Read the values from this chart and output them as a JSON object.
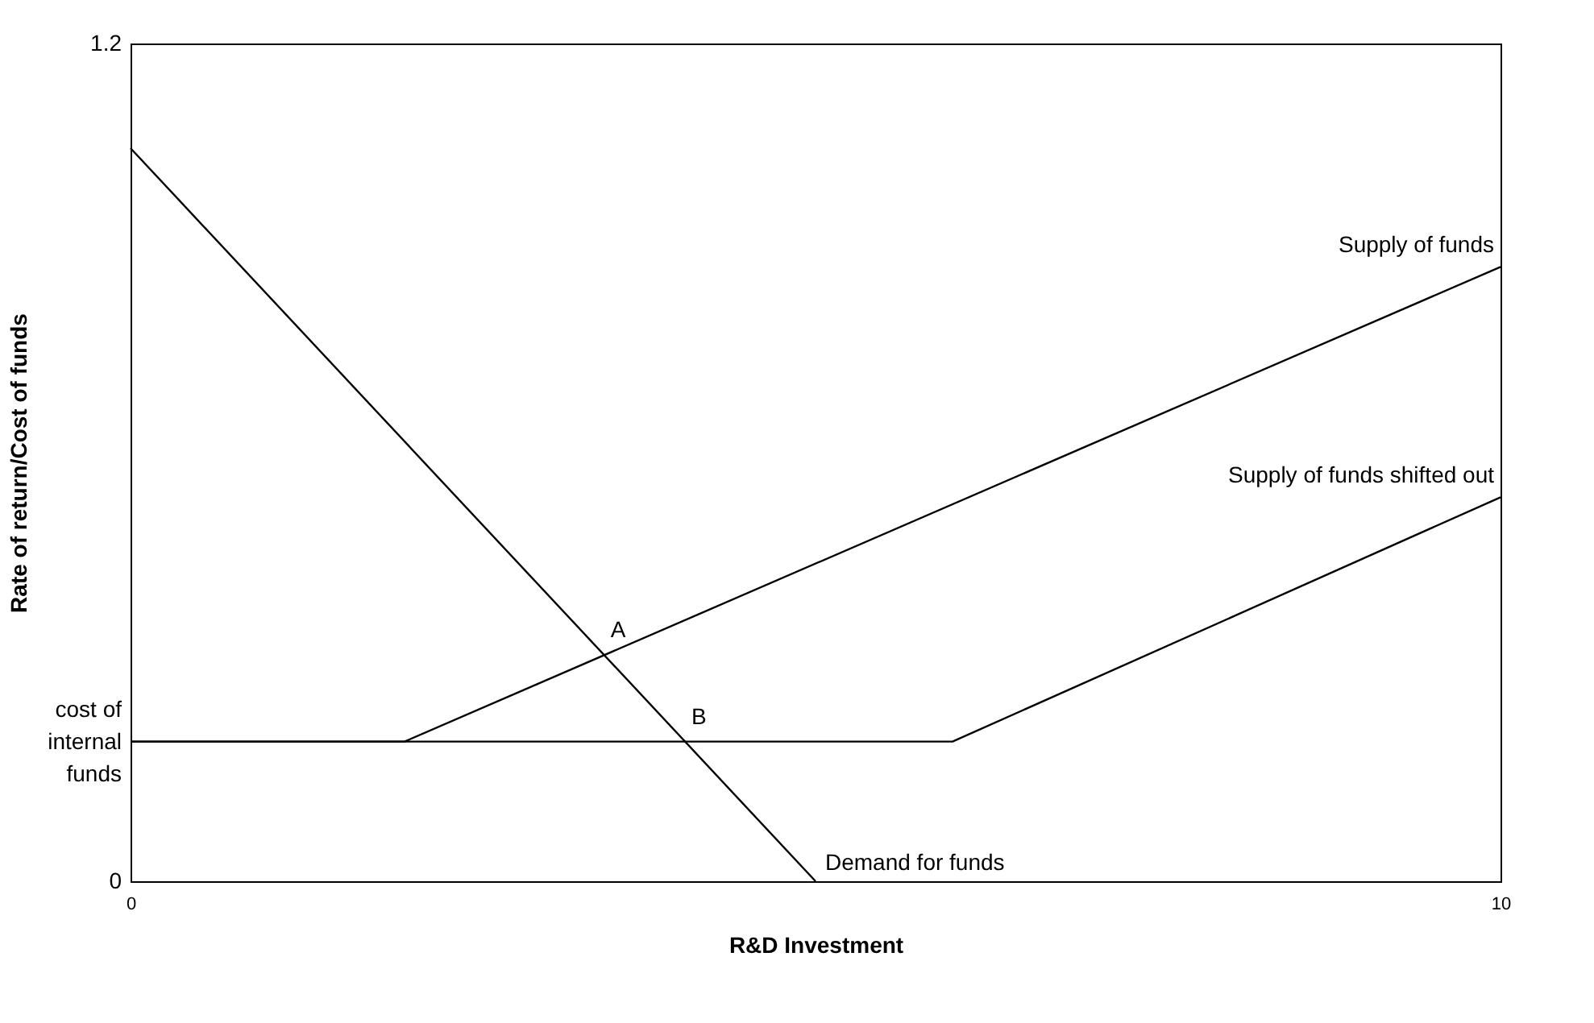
{
  "chart_data": {
    "type": "line",
    "xlabel": "R&D Investment",
    "ylabel": "Rate of return/Cost of funds",
    "xlim": [
      0,
      10
    ],
    "ylim": [
      0,
      1.2
    ],
    "xticks": [
      0,
      10
    ],
    "yticks": [
      0,
      {
        "value": 0.2,
        "label": "cost of\ninternal\nfunds"
      },
      1.2
    ],
    "grid": false,
    "marker": "none",
    "line_style": "solid",
    "series": [
      {
        "name": "Demand for funds",
        "color": "#000000",
        "x": [
          0,
          5
        ],
        "values": [
          1.05,
          0
        ]
      },
      {
        "name": "Supply of funds",
        "color": "#000000",
        "x": [
          0,
          2,
          10
        ],
        "values": [
          0.2,
          0.2,
          0.88
        ]
      },
      {
        "name": "Supply of funds shifted out",
        "color": "#000000",
        "x": [
          0,
          6,
          10
        ],
        "values": [
          0.2,
          0.2,
          0.55
        ]
      }
    ],
    "annotations": [
      "A",
      "B"
    ]
  }
}
